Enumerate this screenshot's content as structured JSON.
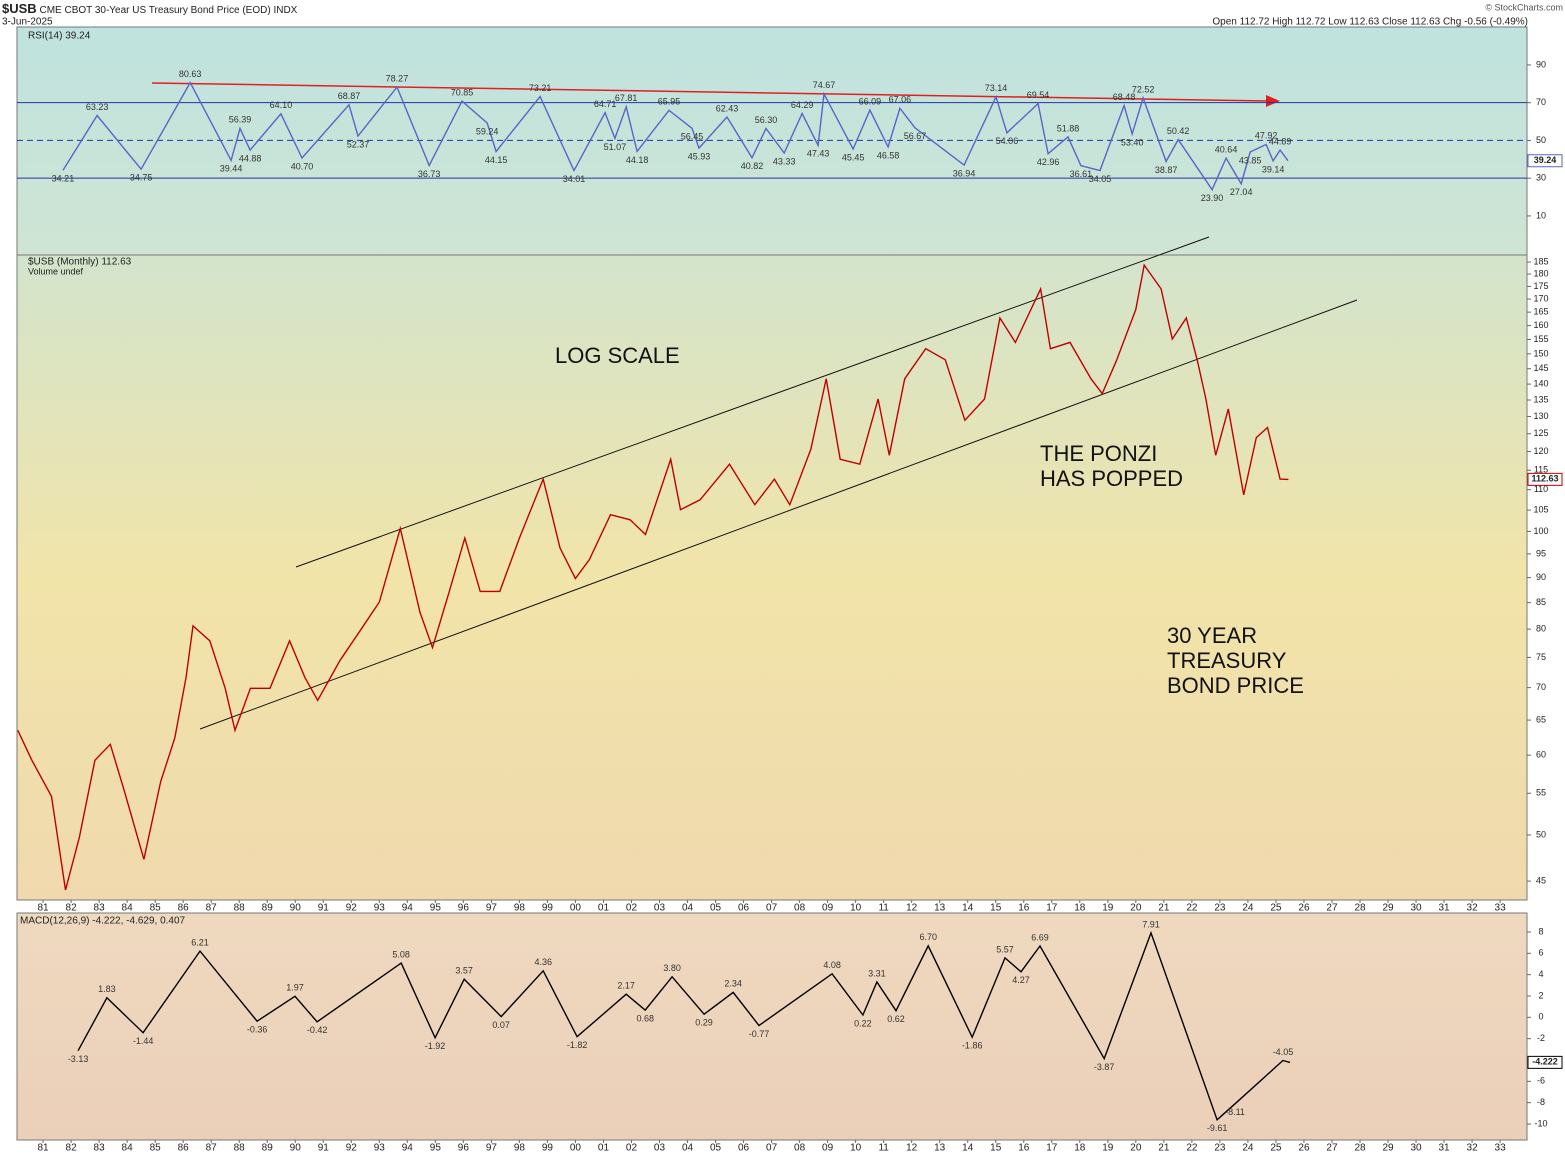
{
  "header": {
    "symbol": "$USB",
    "title": "CME CBOT 30-Year US Treasury Bond Price (EOD)",
    "exchange": "INDX",
    "date": "3-Jun-2025",
    "quote": "Open 112.72  High 112.72  Low 112.63  Close 112.63  Chg -0.56 (-0.49%)",
    "credit": "© StockCharts.com"
  },
  "chart_data": [
    {
      "type": "line",
      "label": "RSI(14) 39.24",
      "color": "#5a64c8",
      "level_color": "#2233aa",
      "xlim": [
        1980.07,
        2033.96
      ],
      "ylim": [
        -10.7,
        110.1
      ],
      "yticks": [
        10,
        30,
        50,
        70,
        90
      ],
      "levels": [
        {
          "value": 70,
          "style": "solid"
        },
        {
          "value": 50,
          "style": "dashed"
        },
        {
          "value": 30,
          "style": "solid"
        }
      ],
      "x": [
        1981.71,
        1982.93,
        1984.5,
        1986.25,
        1987.71,
        1988.03,
        1988.39,
        1989.49,
        1990.24,
        1991.92,
        1992.24,
        1993.63,
        1994.78,
        1995.95,
        1996.85,
        1997.17,
        1998.74,
        1999.95,
        2001.06,
        2001.41,
        2001.81,
        2002.2,
        2003.34,
        2004.16,
        2004.41,
        2005.41,
        2006.3,
        2006.8,
        2007.45,
        2008.09,
        2008.66,
        2008.87,
        2009.91,
        2010.51,
        2011.16,
        2011.58,
        2012.12,
        2013.87,
        2015.01,
        2015.4,
        2016.51,
        2016.87,
        2017.58,
        2018.04,
        2018.72,
        2019.58,
        2019.87,
        2020.26,
        2021.08,
        2021.51,
        2022.72,
        2023.22,
        2023.76,
        2024.08,
        2024.65,
        2024.9,
        2025.15,
        2025.43
      ],
      "values": [
        34.21,
        63.23,
        34.75,
        80.63,
        39.44,
        56.39,
        44.88,
        64.1,
        40.7,
        68.87,
        52.37,
        78.27,
        36.73,
        70.85,
        59.24,
        44.15,
        73.21,
        34.01,
        64.71,
        51.07,
        67.81,
        44.18,
        65.95,
        56.45,
        45.93,
        62.43,
        40.82,
        56.3,
        43.33,
        64.29,
        47.43,
        74.67,
        45.45,
        66.09,
        46.58,
        67.06,
        56.67,
        36.94,
        73.14,
        54.06,
        69.54,
        42.96,
        51.88,
        36.61,
        34.05,
        68.48,
        53.4,
        72.52,
        38.87,
        50.42,
        23.9,
        40.64,
        27.04,
        43.85,
        47.92,
        39.14,
        44.89,
        39.24
      ],
      "value_labels": [
        "34.21",
        "63.23",
        "34.75",
        "80.63",
        "39.44",
        "56.39",
        "44.88",
        "64.10",
        "40.70",
        "68.87",
        "52.37",
        "78.27",
        "36.73",
        "70.85",
        "59.24",
        "44.15",
        "73.21",
        "34.01",
        "64.71",
        "51.07",
        "67.81",
        "44.18",
        "65.95",
        "56.45",
        "45.93",
        "62.43",
        "40.82",
        "56.30",
        "43.33",
        "64.29",
        "47.43",
        "74.67",
        "45.45",
        "66.09",
        "46.58",
        "67.06",
        "56.67",
        "36.94",
        "73.14",
        "54.06",
        "69.54",
        "42.96",
        "51.88",
        "36.61",
        "34.05",
        "68.48",
        "53.40",
        "72.52",
        "38.87",
        "50.42",
        "23.90",
        "40.64",
        "27.04",
        "43.85",
        "47.92",
        "39.14",
        "44.89",
        "39.24"
      ]
    },
    {
      "type": "line",
      "label": "$USB (Monthly) 112.63",
      "sublabel": "Volume undef",
      "color": "#c00000",
      "log_scale": true,
      "xlim": [
        1980.07,
        2033.96
      ],
      "ylim": [
        43.1,
        188
      ],
      "yticks": [
        45,
        50,
        55,
        60,
        65,
        70,
        75,
        80,
        85,
        90,
        95,
        100,
        105,
        110,
        115,
        120,
        125,
        130,
        135,
        140,
        145,
        150,
        155,
        160,
        165,
        170,
        175,
        180,
        185
      ],
      "xticks": [
        {
          "value": 1981,
          "label": "81"
        },
        {
          "value": 1982,
          "label": "82"
        },
        {
          "value": 1983,
          "label": "83"
        },
        {
          "value": 1984,
          "label": "84"
        },
        {
          "value": 1985,
          "label": "85"
        },
        {
          "value": 1986,
          "label": "86"
        },
        {
          "value": 1987,
          "label": "87"
        },
        {
          "value": 1988,
          "label": "88"
        },
        {
          "value": 1989,
          "label": "89"
        },
        {
          "value": 1990,
          "label": "90"
        },
        {
          "value": 1991,
          "label": "91"
        },
        {
          "value": 1992,
          "label": "92"
        },
        {
          "value": 1993,
          "label": "93"
        },
        {
          "value": 1994,
          "label": "94"
        },
        {
          "value": 1995,
          "label": "95"
        },
        {
          "value": 1996,
          "label": "96"
        },
        {
          "value": 1997,
          "label": "97"
        },
        {
          "value": 1998,
          "label": "98"
        },
        {
          "value": 1999,
          "label": "99"
        },
        {
          "value": 2000,
          "label": "00"
        },
        {
          "value": 2001,
          "label": "01"
        },
        {
          "value": 2002,
          "label": "02"
        },
        {
          "value": 2003,
          "label": "03"
        },
        {
          "value": 2004,
          "label": "04"
        },
        {
          "value": 2005,
          "label": "05"
        },
        {
          "value": 2006,
          "label": "06"
        },
        {
          "value": 2007,
          "label": "07"
        },
        {
          "value": 2008,
          "label": "08"
        },
        {
          "value": 2009,
          "label": "09"
        },
        {
          "value": 2010,
          "label": "10"
        },
        {
          "value": 2011,
          "label": "11"
        },
        {
          "value": 2012,
          "label": "12"
        },
        {
          "value": 2013,
          "label": "13"
        },
        {
          "value": 2014,
          "label": "14"
        },
        {
          "value": 2015,
          "label": "15"
        },
        {
          "value": 2016,
          "label": "16"
        },
        {
          "value": 2017,
          "label": "17"
        },
        {
          "value": 2018,
          "label": "18"
        },
        {
          "value": 2019,
          "label": "19"
        },
        {
          "value": 2020,
          "label": "20"
        },
        {
          "value": 2021,
          "label": "21"
        },
        {
          "value": 2022,
          "label": "22"
        },
        {
          "value": 2023,
          "label": "23"
        },
        {
          "value": 2024,
          "label": "24"
        },
        {
          "value": 2025,
          "label": "25"
        },
        {
          "value": 2026,
          "label": "26"
        },
        {
          "value": 2027,
          "label": "27"
        },
        {
          "value": 2028,
          "label": "28"
        },
        {
          "value": 2029,
          "label": "29"
        },
        {
          "value": 2030,
          "label": "30"
        },
        {
          "value": 2031,
          "label": "31"
        },
        {
          "value": 2032,
          "label": "32"
        },
        {
          "value": 2033,
          "label": "33"
        }
      ],
      "x": [
        1980.1,
        1980.6,
        1981.3,
        1981.8,
        1982.3,
        1982.85,
        1983.4,
        1983.9,
        1984.6,
        1985.2,
        1985.7,
        1986.1,
        1986.35,
        1986.95,
        1987.5,
        1987.85,
        1988.4,
        1989.1,
        1989.8,
        1990.35,
        1990.8,
        1991.6,
        1992.3,
        1993.0,
        1993.75,
        1994.45,
        1994.9,
        1995.5,
        1996.05,
        1996.6,
        1997.3,
        1998.0,
        1998.85,
        1999.45,
        2000.0,
        2000.5,
        2001.25,
        2001.95,
        2002.5,
        2003.4,
        2003.75,
        2004.45,
        2005.5,
        2006.4,
        2007.1,
        2007.65,
        2008.4,
        2008.95,
        2009.45,
        2010.15,
        2010.8,
        2011.2,
        2011.75,
        2012.5,
        2013.2,
        2013.9,
        2014.6,
        2015.15,
        2015.7,
        2016.6,
        2016.95,
        2017.65,
        2018.4,
        2018.8,
        2019.3,
        2020.0,
        2020.3,
        2020.9,
        2021.3,
        2021.8,
        2022.2,
        2022.5,
        2022.85,
        2023.3,
        2023.85,
        2024.3,
        2024.7,
        2025.15,
        2025.45
      ],
      "values": [
        63.5,
        59.3,
        54.6,
        44.1,
        49.8,
        59.3,
        61.5,
        55.3,
        47.3,
        56.5,
        62.4,
        71.6,
        80.6,
        77.9,
        69.9,
        63.5,
        69.9,
        69.9,
        77.9,
        71.6,
        68.0,
        74.5,
        79.6,
        85.1,
        100.7,
        83.2,
        76.7,
        87.2,
        98.5,
        87.2,
        87.2,
        98.5,
        112.7,
        96.3,
        89.8,
        93.8,
        103.9,
        102.7,
        99.3,
        117.9,
        105.1,
        107.5,
        116.6,
        106.3,
        112.7,
        106.3,
        120.6,
        141.7,
        117.9,
        116.6,
        135.3,
        119.0,
        141.7,
        151.8,
        148.0,
        128.9,
        135.3,
        162.8,
        154.0,
        174.0,
        151.8,
        154.0,
        141.7,
        137.0,
        147.5,
        166.0,
        183.7,
        174.0,
        155.2,
        162.8,
        147.5,
        135.3,
        119.0,
        132.3,
        108.7,
        123.9,
        126.8,
        112.7,
        112.63
      ],
      "annotations": [
        [
          "LOG SCALE"
        ],
        [
          "THE PONZI",
          "HAS POPPED"
        ],
        [
          "30 YEAR",
          "TREASURY",
          "BOND PRICE"
        ]
      ]
    },
    {
      "type": "line",
      "label": "MACD(12,26,9) -4.222, -4.629, 0.407",
      "color": "#000000",
      "xlim": [
        1980.07,
        2033.96
      ],
      "ylim": [
        -11.5,
        9.78
      ],
      "yticks": [
        8,
        6,
        4,
        2,
        0,
        -2,
        -4,
        -6,
        -8,
        -10
      ],
      "xticks": [
        {
          "value": 1981,
          "label": "81"
        },
        {
          "value": 1982,
          "label": "82"
        },
        {
          "value": 1983,
          "label": "83"
        },
        {
          "value": 1984,
          "label": "84"
        },
        {
          "value": 1985,
          "label": "85"
        },
        {
          "value": 1986,
          "label": "86"
        },
        {
          "value": 1987,
          "label": "87"
        },
        {
          "value": 1988,
          "label": "88"
        },
        {
          "value": 1989,
          "label": "89"
        },
        {
          "value": 1990,
          "label": "90"
        },
        {
          "value": 1991,
          "label": "91"
        },
        {
          "value": 1992,
          "label": "92"
        },
        {
          "value": 1993,
          "label": "93"
        },
        {
          "value": 1994,
          "label": "94"
        },
        {
          "value": 1995,
          "label": "95"
        },
        {
          "value": 1996,
          "label": "96"
        },
        {
          "value": 1997,
          "label": "97"
        },
        {
          "value": 1998,
          "label": "98"
        },
        {
          "value": 1999,
          "label": "99"
        },
        {
          "value": 2000,
          "label": "00"
        },
        {
          "value": 2001,
          "label": "01"
        },
        {
          "value": 2002,
          "label": "02"
        },
        {
          "value": 2003,
          "label": "03"
        },
        {
          "value": 2004,
          "label": "04"
        },
        {
          "value": 2005,
          "label": "05"
        },
        {
          "value": 2006,
          "label": "06"
        },
        {
          "value": 2007,
          "label": "07"
        },
        {
          "value": 2008,
          "label": "08"
        },
        {
          "value": 2009,
          "label": "09"
        },
        {
          "value": 2010,
          "label": "10"
        },
        {
          "value": 2011,
          "label": "11"
        },
        {
          "value": 2012,
          "label": "12"
        },
        {
          "value": 2013,
          "label": "13"
        },
        {
          "value": 2014,
          "label": "14"
        },
        {
          "value": 2015,
          "label": "15"
        },
        {
          "value": 2016,
          "label": "16"
        },
        {
          "value": 2017,
          "label": "17"
        },
        {
          "value": 2018,
          "label": "18"
        },
        {
          "value": 2019,
          "label": "19"
        },
        {
          "value": 2020,
          "label": "20"
        },
        {
          "value": 2021,
          "label": "21"
        },
        {
          "value": 2022,
          "label": "22"
        },
        {
          "value": 2023,
          "label": "23"
        },
        {
          "value": 2024,
          "label": "24"
        },
        {
          "value": 2025,
          "label": "25"
        },
        {
          "value": 2026,
          "label": "26"
        },
        {
          "value": 2027,
          "label": "27"
        },
        {
          "value": 2028,
          "label": "28"
        },
        {
          "value": 2029,
          "label": "29"
        },
        {
          "value": 2030,
          "label": "30"
        },
        {
          "value": 2031,
          "label": "31"
        },
        {
          "value": 2032,
          "label": "32"
        },
        {
          "value": 2033,
          "label": "33"
        }
      ],
      "x": [
        1982.25,
        1983.28,
        1984.57,
        1986.6,
        1988.64,
        1989.99,
        1990.78,
        1993.78,
        1994.99,
        1996.03,
        1997.35,
        1998.85,
        2000.06,
        2001.81,
        2002.49,
        2003.45,
        2004.59,
        2005.63,
        2006.55,
        2009.16,
        2010.26,
        2010.76,
        2011.44,
        2012.59,
        2014.16,
        2015.33,
        2015.9,
        2016.58,
        2018.87,
        2020.54,
        2022.9,
        2023.54,
        2025.25,
        2025.5
      ],
      "values": [
        -3.13,
        1.83,
        -1.44,
        6.21,
        -0.36,
        1.97,
        -0.42,
        5.08,
        -1.92,
        3.57,
        0.07,
        4.36,
        -1.82,
        2.17,
        0.68,
        3.8,
        0.29,
        2.34,
        -0.77,
        4.08,
        0.22,
        3.31,
        0.62,
        6.7,
        -1.86,
        5.57,
        4.27,
        6.69,
        -3.87,
        7.91,
        -9.61,
        -8.11,
        -4.05,
        -4.222
      ],
      "value_labels": [
        "-3.13",
        "1.83",
        "-1.44",
        "6.21",
        "-0.36",
        "1.97",
        "-0.42",
        "5.08",
        "-1.92",
        "3.57",
        "0.07",
        "4.36",
        "-1.82",
        "2.17",
        "0.68",
        "3.80",
        "0.29",
        "2.34",
        "-0.77",
        "4.08",
        "0.22",
        "3.31",
        "0.62",
        "6.70",
        "-1.86",
        "5.57",
        "4.27",
        "6.69",
        "-3.87",
        "7.91",
        "-9.61",
        "-8.11",
        "-4.05",
        "-4.222"
      ]
    }
  ]
}
